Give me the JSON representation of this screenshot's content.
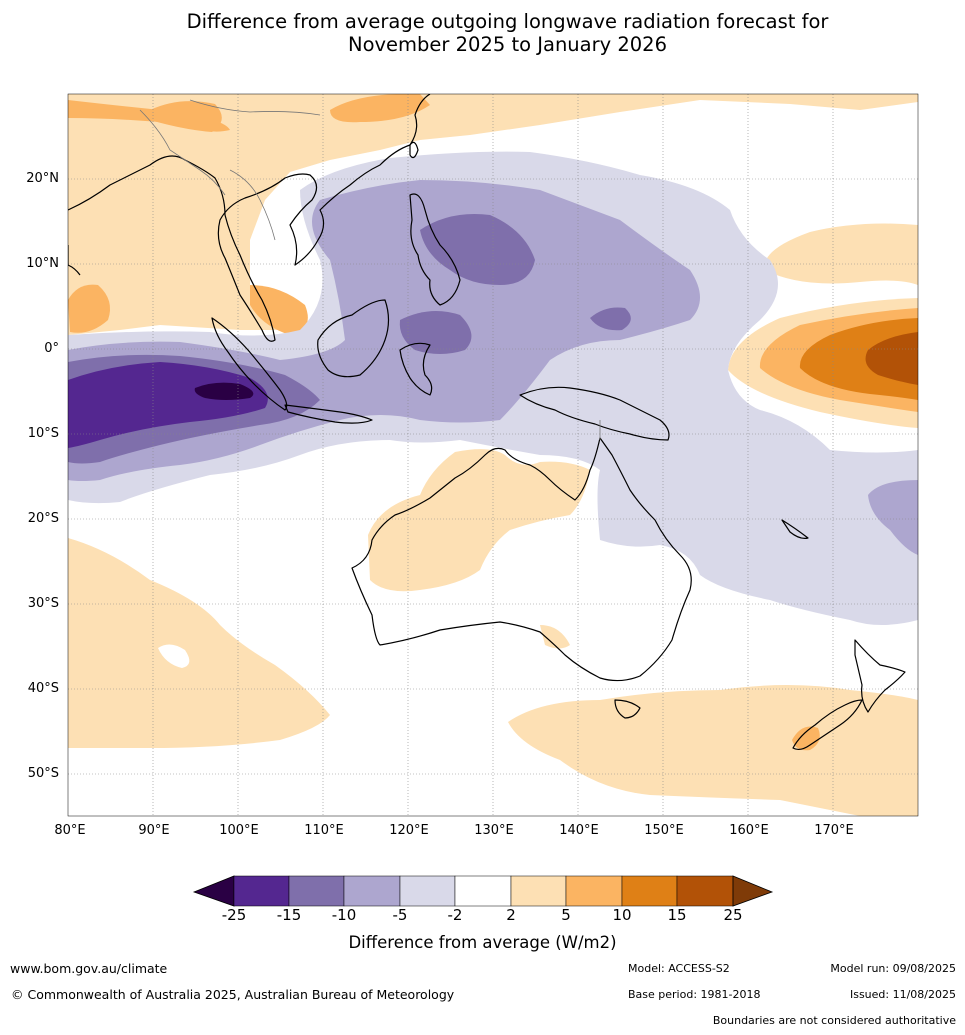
{
  "title": {
    "line1": "Difference from average outgoing longwave radiation forecast for",
    "line2": "November 2025 to January 2026"
  },
  "map": {
    "lat_labels": [
      "20°N",
      "10°N",
      "0°",
      "10°S",
      "20°S",
      "30°S",
      "40°S",
      "50°S"
    ],
    "lon_labels": [
      "80°E",
      "90°E",
      "100°E",
      "110°E",
      "120°E",
      "130°E",
      "140°E",
      "150°E",
      "160°E",
      "170°E"
    ],
    "lon_range": [
      80,
      180
    ],
    "lat_range": [
      -55,
      30
    ]
  },
  "colorbar": {
    "ticks": [
      "-25",
      "-15",
      "-10",
      "-5",
      "-2",
      "2",
      "5",
      "10",
      "15",
      "25"
    ],
    "colors": [
      "#2a0044",
      "#542790",
      "#7f6fab",
      "#ada6cf",
      "#d9d9e9",
      "#ffffff",
      "#fde0b4",
      "#fbb462",
      "#df8016",
      "#b25207",
      "#7f3b08"
    ],
    "label": "Difference from average (W/m2)"
  },
  "footer": {
    "website": "www.bom.gov.au/climate",
    "copyright": "© Commonwealth of Australia 2025, Australian Bureau of Meteorology",
    "model": "Model: ACCESS-S2",
    "base_period": "Base period: 1981-2018",
    "model_run": "Model run: 09/08/2025",
    "issued": "Issued: 11/08/2025",
    "disclaimer": "Boundaries are not considered authoritative"
  }
}
